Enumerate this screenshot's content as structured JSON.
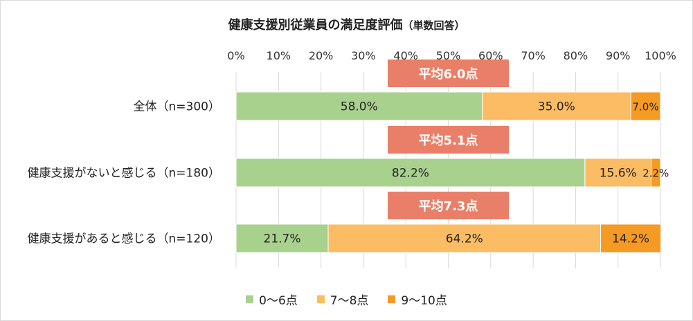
{
  "chart_data": {
    "type": "bar",
    "orientation": "horizontal",
    "stacked": "percent",
    "title": "健康支援別従業員の満足度評価",
    "subtitle": "（単数回答）",
    "xlim": [
      0,
      100
    ],
    "xticks": [
      "0%",
      "10%",
      "20%",
      "30%",
      "40%",
      "50%",
      "60%",
      "70%",
      "80%",
      "90%",
      "100%"
    ],
    "grid": true,
    "legend_position": "bottom",
    "categories": [
      "全体（n=300）",
      "健康支援がないと感じる（n=180）",
      "健康支援があると感じる（n=120）"
    ],
    "averages": [
      "平均6.0点",
      "平均5.1点",
      "平均7.3点"
    ],
    "series": [
      {
        "name": "0～6点",
        "color": "#a9d18e",
        "values": [
          58.0,
          82.2,
          21.7
        ],
        "labels": [
          "58.0%",
          "82.2%",
          "21.7%"
        ]
      },
      {
        "name": "7～8点",
        "color": "#fbbc63",
        "values": [
          35.0,
          15.6,
          64.2
        ],
        "labels": [
          "35.0%",
          "15.6%",
          "64.2%"
        ]
      },
      {
        "name": "9～10点",
        "color": "#f59a23",
        "values": [
          7.0,
          2.2,
          14.2
        ],
        "labels": [
          "7.0%",
          "2.2%",
          "14.2%"
        ]
      }
    ],
    "average_box_color": "#e97f68"
  }
}
